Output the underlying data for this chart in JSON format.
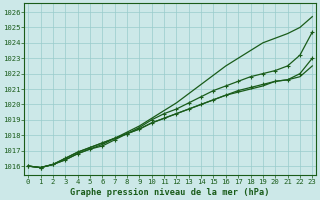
{
  "title": "Graphe pression niveau de la mer (hPa)",
  "xlabel": "Graphe pression niveau de la mer (hPa)",
  "hours": [
    0,
    1,
    2,
    3,
    4,
    5,
    6,
    7,
    8,
    9,
    10,
    11,
    12,
    13,
    14,
    15,
    16,
    17,
    18,
    19,
    20,
    21,
    22,
    23
  ],
  "line1_no_marker": [
    1016.0,
    1015.9,
    1016.1,
    1016.4,
    1016.8,
    1017.1,
    1017.4,
    1017.8,
    1018.2,
    1018.6,
    1019.1,
    1019.6,
    1020.1,
    1020.7,
    1021.3,
    1021.9,
    1022.5,
    1023.0,
    1023.5,
    1024.0,
    1024.3,
    1024.6,
    1025.0,
    1025.7
  ],
  "line2_marker": [
    1016.0,
    1015.9,
    1016.1,
    1016.4,
    1016.8,
    1017.1,
    1017.3,
    1017.7,
    1018.1,
    1018.5,
    1019.0,
    1019.4,
    1019.7,
    1020.1,
    1020.5,
    1020.9,
    1021.2,
    1021.5,
    1021.8,
    1022.0,
    1022.2,
    1022.5,
    1023.2,
    1024.7
  ],
  "line3_marker": [
    1016.0,
    1015.9,
    1016.1,
    1016.5,
    1016.9,
    1017.2,
    1017.5,
    1017.8,
    1018.1,
    1018.4,
    1018.8,
    1019.1,
    1019.4,
    1019.7,
    1020.0,
    1020.3,
    1020.6,
    1020.9,
    1021.1,
    1021.3,
    1021.5,
    1021.6,
    1022.0,
    1023.0
  ],
  "line4_no_marker": [
    1016.0,
    1015.9,
    1016.1,
    1016.5,
    1016.9,
    1017.2,
    1017.5,
    1017.8,
    1018.1,
    1018.4,
    1018.8,
    1019.1,
    1019.4,
    1019.7,
    1020.0,
    1020.3,
    1020.6,
    1020.8,
    1021.0,
    1021.2,
    1021.5,
    1021.6,
    1021.8,
    1022.5
  ],
  "line_color": "#1a5c1a",
  "bg_color": "#cce8e8",
  "grid_color": "#99cccc",
  "ylim": [
    1015.4,
    1026.6
  ],
  "xlim": [
    -0.3,
    23.3
  ],
  "yticks": [
    1016,
    1017,
    1018,
    1019,
    1020,
    1021,
    1022,
    1023,
    1024,
    1025,
    1026
  ],
  "xticks": [
    0,
    1,
    2,
    3,
    4,
    5,
    6,
    7,
    8,
    9,
    10,
    11,
    12,
    13,
    14,
    15,
    16,
    17,
    18,
    19,
    20,
    21,
    22,
    23
  ],
  "tick_fontsize": 5.2,
  "label_fontsize": 6.2
}
